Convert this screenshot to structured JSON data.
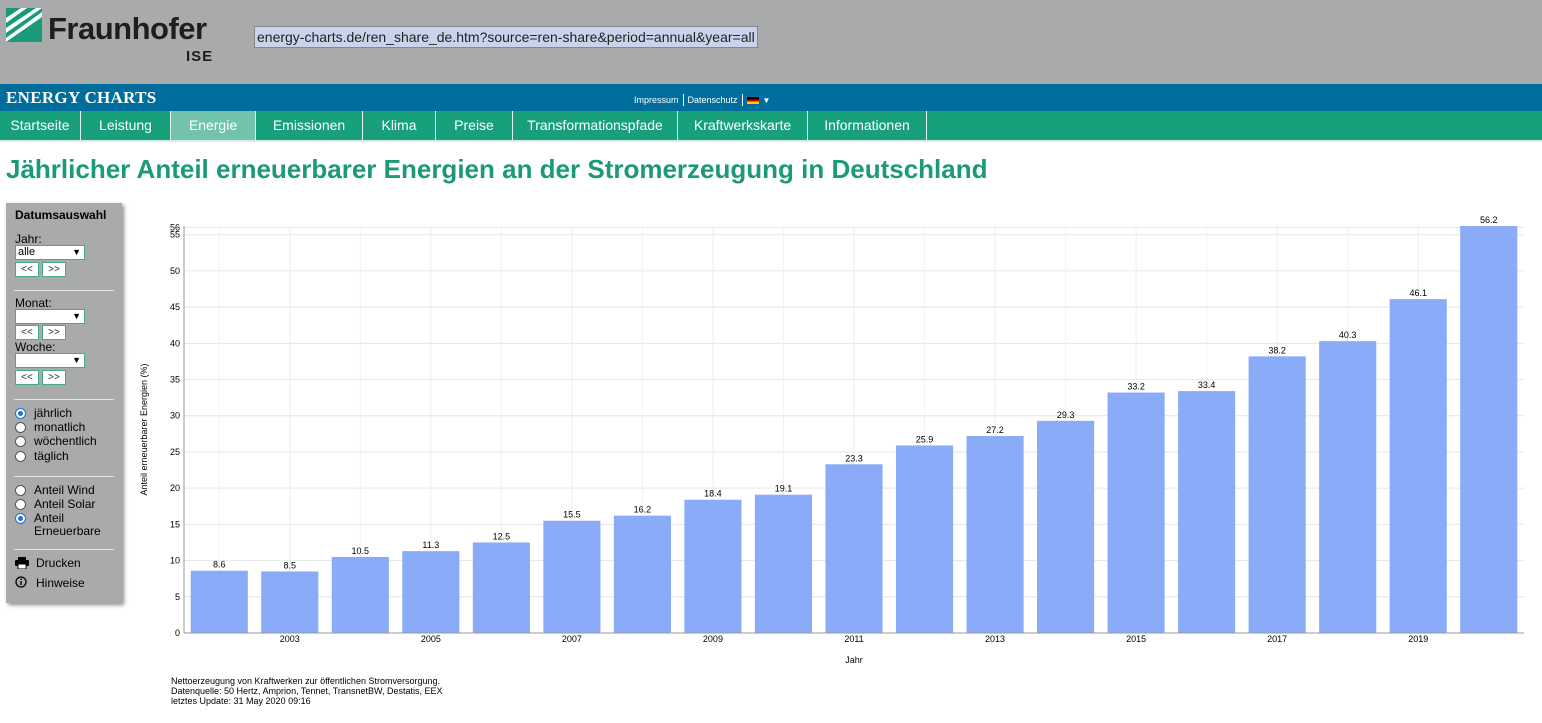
{
  "header": {
    "logo_name": "Fraunhofer",
    "logo_sub": "ISE",
    "url": "energy-charts.de/ren_share_de.htm?source=ren-share&period=annual&year=all",
    "brand_title": "ENERGY CHARTS",
    "meta_links": [
      "Impressum",
      "Datenschutz"
    ],
    "language_flag_icon": "german-flag-icon"
  },
  "nav": {
    "items": [
      "Startseite",
      "Leistung",
      "Energie",
      "Emissionen",
      "Klima",
      "Preise",
      "Transformationspfade",
      "Kraftwerkskarte",
      "Informationen"
    ],
    "active": "Energie"
  },
  "page_title": "Jährlicher Anteil erneuerbarer Energien an der Stromerzeugung in Deutschland",
  "sidebar": {
    "heading": "Datumsauswahl",
    "year_label": "Jahr:",
    "year_value": "alle",
    "month_label": "Monat:",
    "month_value": "",
    "week_label": "Woche:",
    "week_value": "",
    "prev_label": "<<",
    "next_label": ">>",
    "periods": [
      "jährlich",
      "monatlich",
      "wöchentlich",
      "täglich"
    ],
    "period_selected": "jährlich",
    "sources": [
      "Anteil Wind",
      "Anteil Solar",
      "Anteil\nErneuerbare"
    ],
    "source_selected": "Anteil\nErneuerbare",
    "print_label": "Drucken",
    "info_label": "Hinweise"
  },
  "chart_data": {
    "type": "bar",
    "categories": [
      "2002",
      "2003",
      "2004",
      "2005",
      "2006",
      "2007",
      "2008",
      "2009",
      "2010",
      "2011",
      "2012",
      "2013",
      "2014",
      "2015",
      "2016",
      "2017",
      "2018",
      "2019",
      "2020"
    ],
    "values": [
      8.6,
      8.5,
      10.5,
      11.3,
      12.5,
      15.5,
      16.2,
      18.4,
      19.1,
      23.3,
      25.9,
      27.2,
      29.3,
      33.2,
      33.4,
      38.2,
      40.3,
      46.1,
      56.2
    ],
    "x_tick_labels": [
      "2003",
      "2005",
      "2007",
      "2009",
      "2011",
      "2013",
      "2015",
      "2017",
      "2019"
    ],
    "y_tick_labels": [
      "0",
      "5",
      "10",
      "15",
      "20",
      "25",
      "30",
      "35",
      "40",
      "45",
      "50",
      "55",
      "56"
    ],
    "xlabel": "Jahr",
    "ylabel": "Anteil erneuerbarer Energien (%)",
    "ylim": [
      0,
      56.2
    ],
    "grid": true,
    "bar_color": "#8aabf8"
  },
  "footnote": [
    "Nettoerzeugung von Kraftwerken zur öffentlichen Stromversorgung.",
    "Datenquelle: 50 Hertz, Amprion, Tennet, TransnetBW, Destatis, EEX",
    "letztes Update: 31 May 2020 09:16"
  ],
  "colors": {
    "topbar": "#a9aaac",
    "brandbar": "#006e9d",
    "navbar": "#18a07d",
    "nav_active": "#72c3ae",
    "title": "#1a9a7a"
  }
}
